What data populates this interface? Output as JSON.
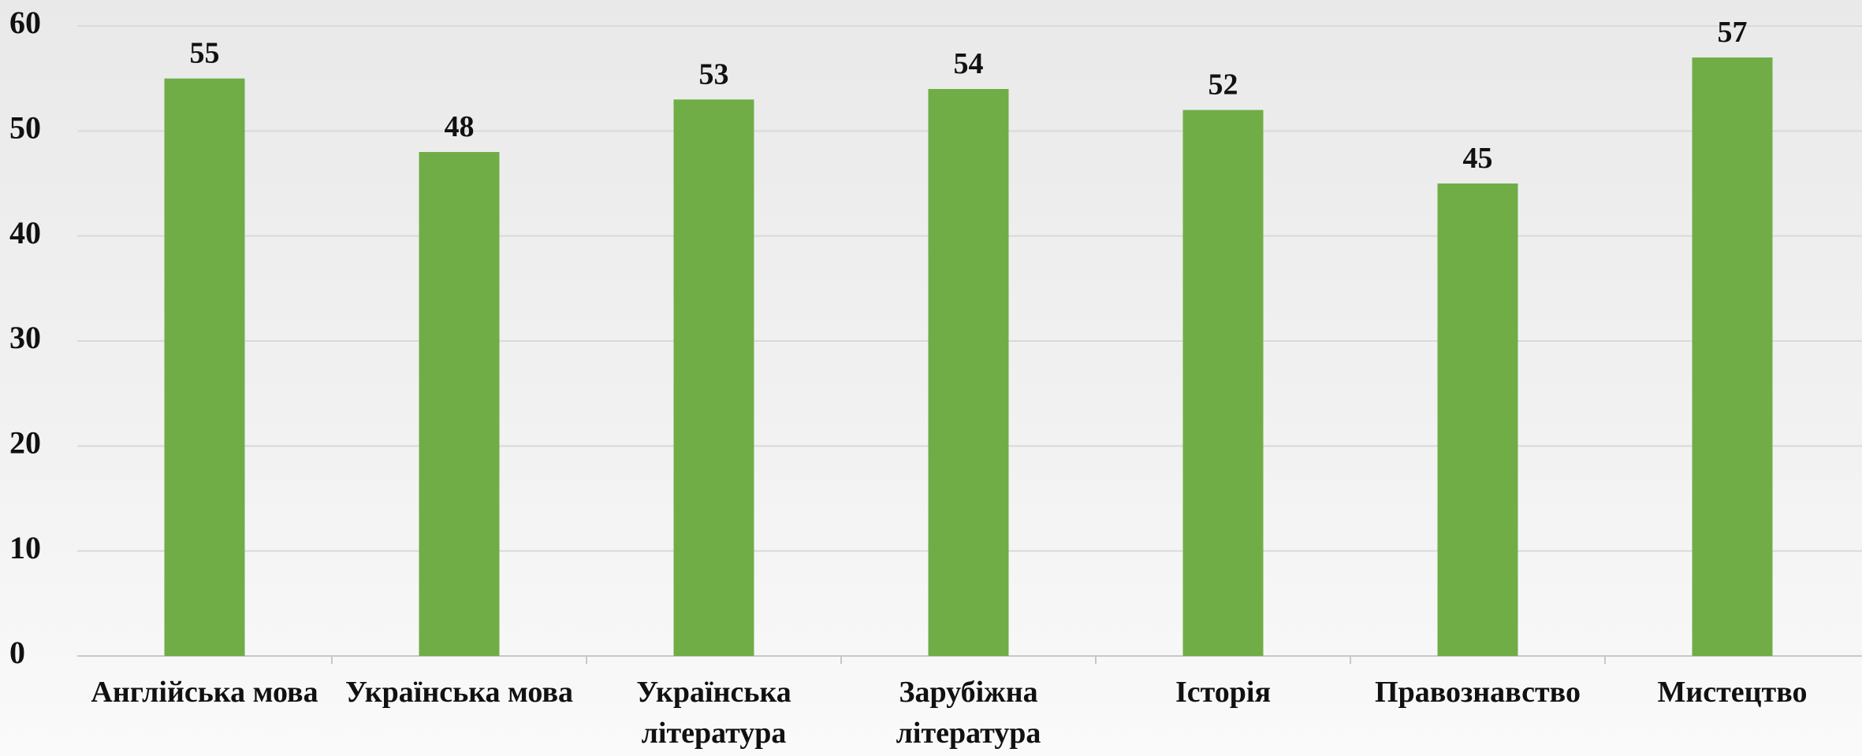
{
  "chart_data": {
    "type": "bar",
    "categories": [
      "Англійська мова",
      "Українська мова",
      "Українська література",
      "Зарубіжна література",
      "Історія",
      "Правознавство",
      "Мистецтво"
    ],
    "values": [
      55,
      48,
      53,
      54,
      52,
      45,
      57
    ],
    "color": "#70ad47",
    "ylim": [
      0,
      60
    ],
    "yticks": [
      0,
      10,
      20,
      30,
      40,
      50,
      60
    ],
    "grid": true
  }
}
